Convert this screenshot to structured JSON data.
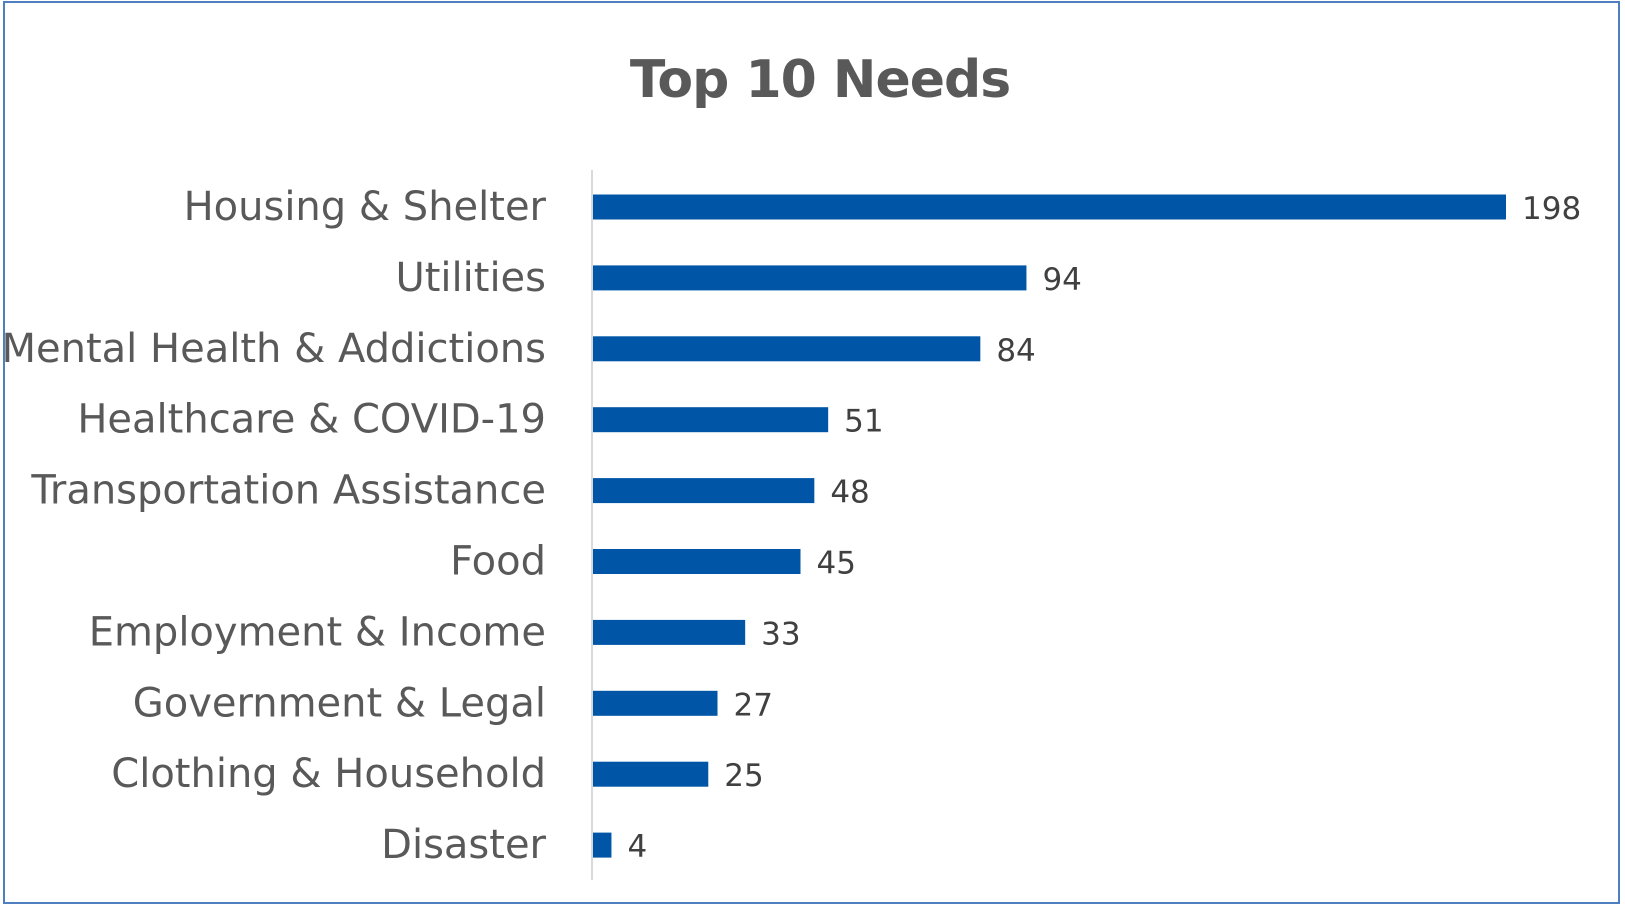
{
  "chart_data": {
    "type": "bar",
    "orientation": "horizontal",
    "title": "Top 10 Needs",
    "categories": [
      "Housing & Shelter",
      "Utilities",
      "Mental Health & Addictions",
      "Healthcare & COVID-19",
      "Transportation Assistance",
      "Food",
      "Employment & Income",
      "Government & Legal",
      "Clothing & Household",
      "Disaster"
    ],
    "values": [
      198,
      94,
      84,
      51,
      48,
      45,
      33,
      27,
      25,
      4
    ],
    "xlim": [
      0,
      198
    ],
    "grid": false,
    "legend": "none",
    "data_labels": true,
    "bar_color": "#0055a6",
    "axis_color": "#d9d9d9",
    "frame_color": "#4f7fc0"
  }
}
